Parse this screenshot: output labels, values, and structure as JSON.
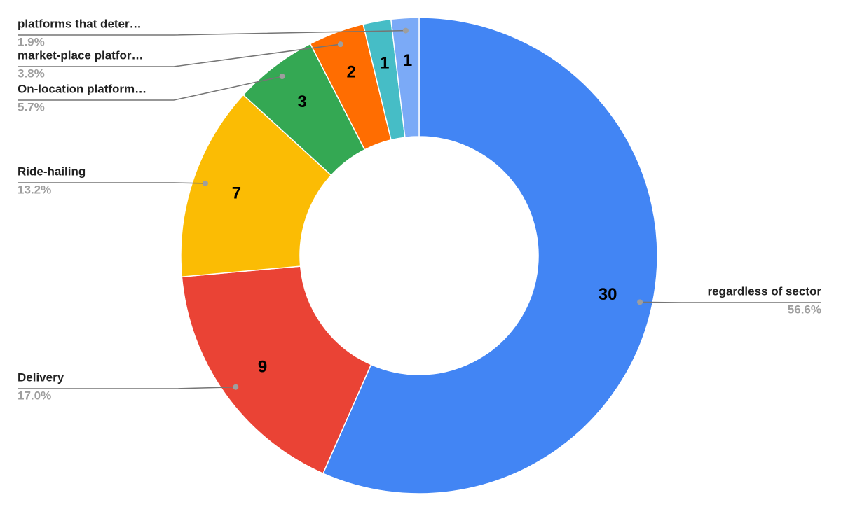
{
  "chart_data": {
    "type": "donut",
    "categories": [
      "regardless of sector",
      "Delivery",
      "Ride-hailing",
      "On-location platform…",
      "market-place platfor…",
      null,
      "platforms that deter…"
    ],
    "values": [
      30,
      9,
      7,
      3,
      2,
      1,
      1
    ],
    "percent_labels": [
      "56.6%",
      "17.0%",
      "13.2%",
      "5.7%",
      "3.8%",
      null,
      "1.9%"
    ],
    "colors": [
      "#4285f4",
      "#ea4335",
      "#fbbc04",
      "#34a853",
      "#ff6d01",
      "#46bdc6",
      "#7baaf7"
    ]
  }
}
